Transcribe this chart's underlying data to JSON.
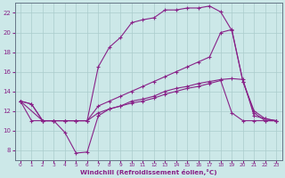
{
  "bg_color": "#cce8e8",
  "grid_color": "#aacccc",
  "line_color": "#882288",
  "xlim": [
    -0.5,
    23.5
  ],
  "ylim": [
    7,
    23
  ],
  "xticks": [
    0,
    1,
    2,
    3,
    4,
    5,
    6,
    7,
    8,
    9,
    10,
    11,
    12,
    13,
    14,
    15,
    16,
    17,
    18,
    19,
    20,
    21,
    22,
    23
  ],
  "yticks": [
    8,
    10,
    12,
    14,
    16,
    18,
    20,
    22
  ],
  "xlabel": "Windchill (Refroidissement éolien,°C)",
  "line1_x": [
    0,
    1,
    2,
    3,
    4,
    5,
    6,
    7,
    8,
    9,
    10,
    11,
    12,
    13,
    14,
    15,
    16,
    17,
    18,
    19,
    20,
    21,
    22,
    23
  ],
  "line1_y": [
    13,
    12.7,
    11,
    11,
    11,
    11,
    11,
    11.8,
    12.2,
    12.5,
    13.0,
    13.2,
    13.5,
    14.0,
    14.3,
    14.5,
    14.8,
    15.0,
    15.2,
    15.3,
    15.2,
    11.5,
    11.2,
    11.0
  ],
  "line2_x": [
    0,
    1,
    2,
    3,
    4,
    5,
    6,
    7,
    8,
    9,
    10,
    11,
    12,
    13,
    14,
    15,
    16,
    17,
    18,
    19,
    20,
    21,
    22,
    23
  ],
  "line2_y": [
    13,
    11,
    11,
    11,
    9.8,
    7.7,
    7.8,
    11.5,
    12.2,
    12.5,
    12.8,
    13.0,
    13.3,
    13.7,
    14.0,
    14.3,
    14.5,
    14.8,
    15.1,
    11.8,
    11.0,
    11.0,
    11.0,
    11.0
  ],
  "line3_x": [
    0,
    1,
    2,
    3,
    4,
    5,
    6,
    7,
    8,
    9,
    10,
    11,
    12,
    13,
    14,
    15,
    16,
    17,
    18,
    19,
    20,
    21,
    22,
    23
  ],
  "line3_y": [
    13.0,
    12.7,
    11.0,
    11.0,
    11.0,
    11.0,
    11.0,
    12.5,
    13.0,
    13.5,
    14.0,
    14.5,
    15.0,
    15.5,
    16.0,
    16.5,
    17.0,
    17.5,
    20.0,
    20.3,
    15.0,
    11.8,
    11.0,
    11.0
  ],
  "line4_x": [
    0,
    2,
    3,
    4,
    5,
    6,
    7,
    8,
    9,
    10,
    11,
    12,
    13,
    14,
    15,
    16,
    17,
    18,
    19,
    20,
    21,
    22,
    23
  ],
  "line4_y": [
    13.0,
    11.0,
    11.0,
    11.0,
    11.0,
    11.0,
    16.5,
    18.5,
    19.5,
    21.0,
    21.3,
    21.5,
    22.3,
    22.3,
    22.5,
    22.5,
    22.7,
    22.1,
    20.2,
    15.0,
    12.0,
    11.2,
    11.0
  ]
}
